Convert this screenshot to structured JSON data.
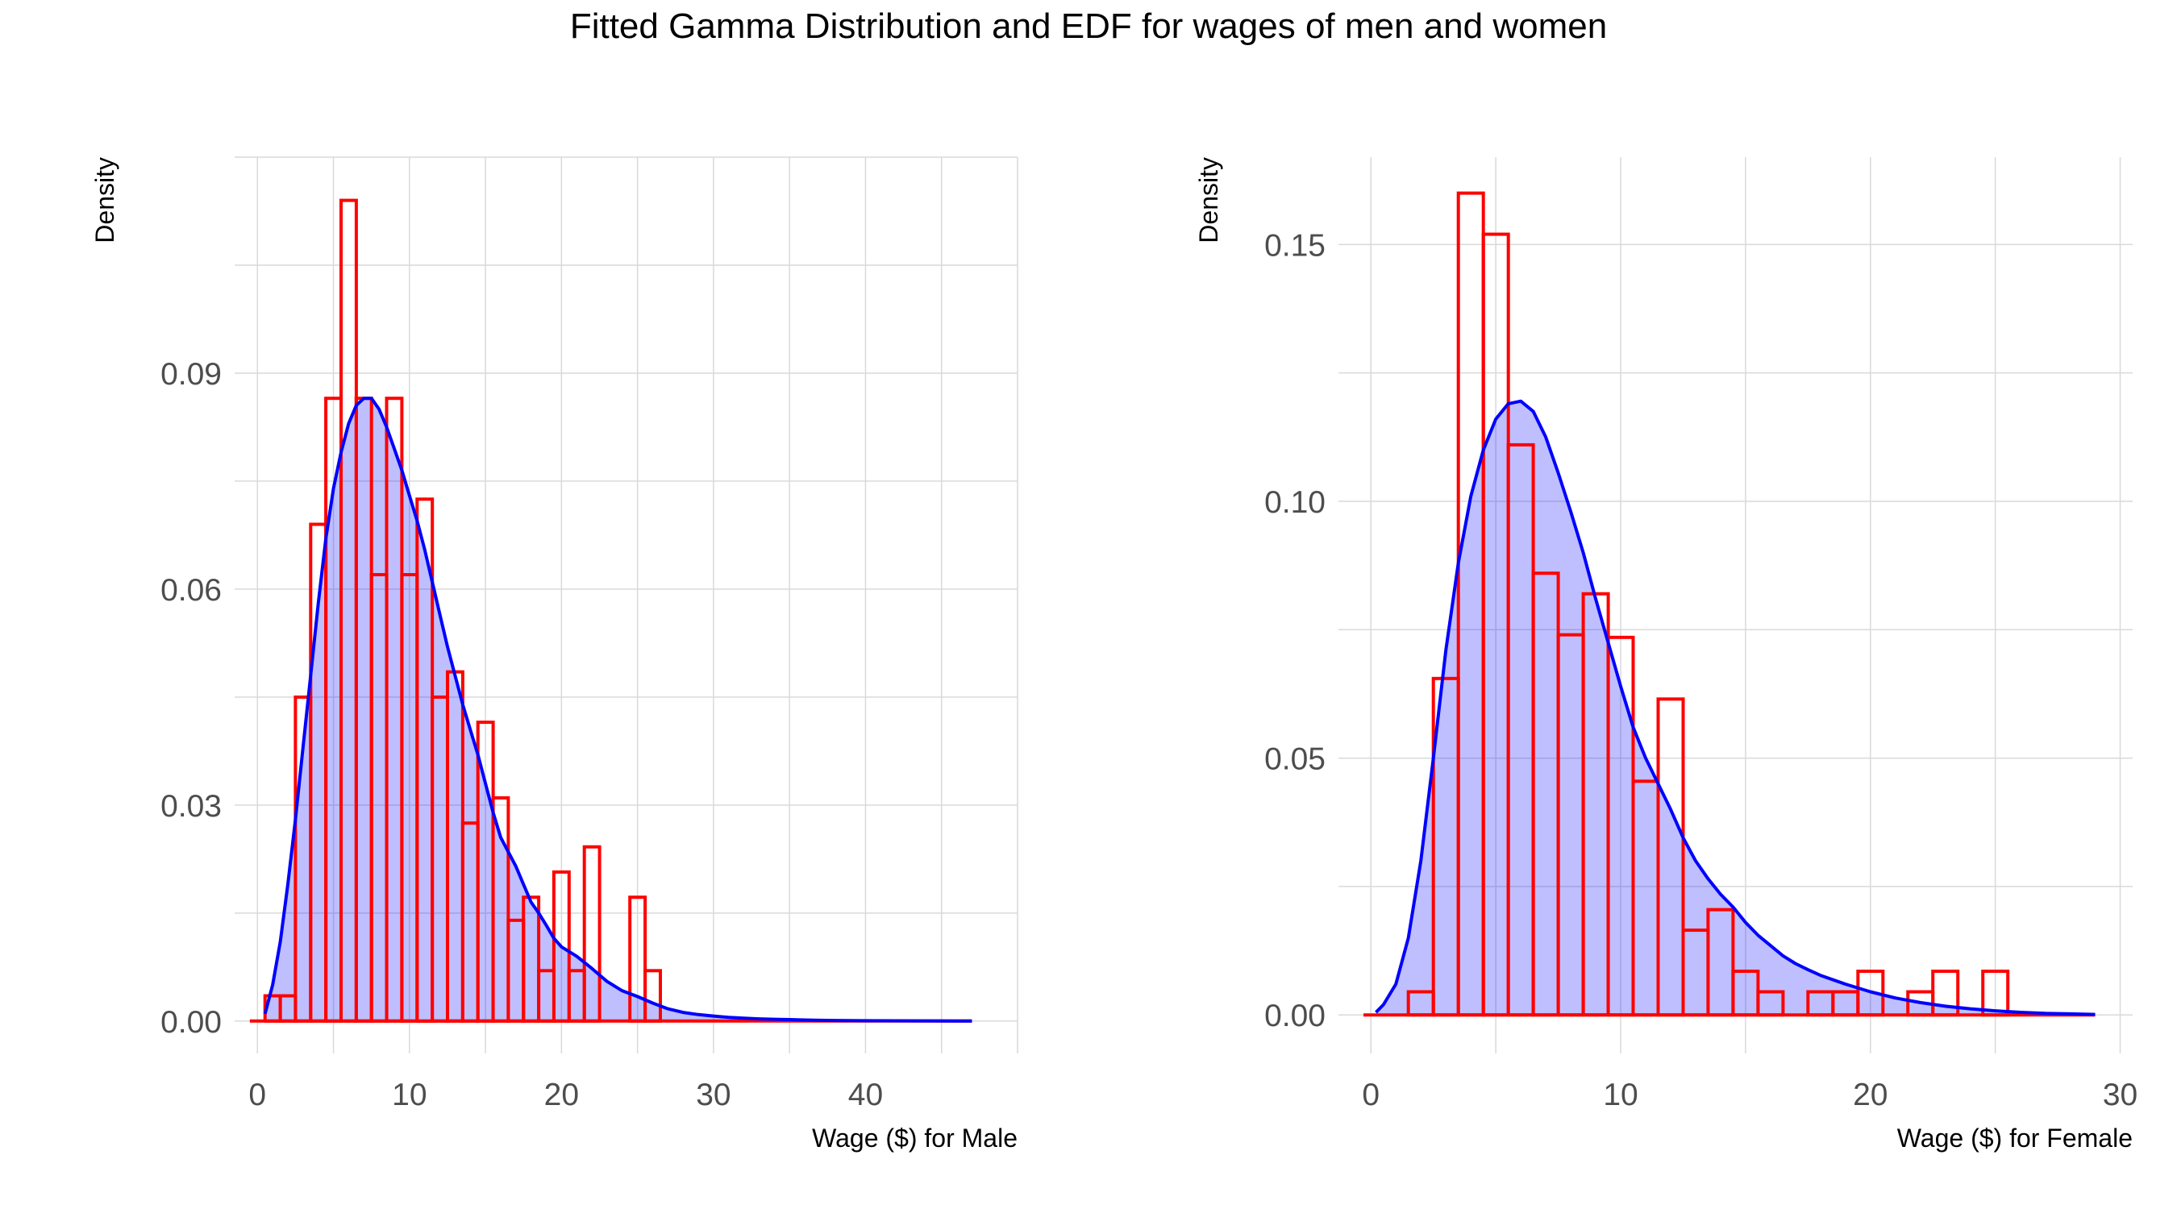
{
  "title": "Fitted Gamma Distribution and EDF for wages of men and women",
  "colors": {
    "histogram_outline": "#ff0000",
    "density_line": "#0000ff",
    "density_fill": "#0000ff",
    "overlap_outline": "#b0103a",
    "grid": "#d9d9d9",
    "tick_text": "#4d4d4d"
  },
  "chart_data": [
    {
      "type": "histogram+density",
      "xlabel": "Wage ($) for Male",
      "ylabel": "Density",
      "xlim": [
        -1.5,
        50
      ],
      "ylim": [
        -0.0045,
        0.12
      ],
      "x_ticks": [
        0,
        10,
        20,
        30,
        40
      ],
      "x_tick_labels": [
        "0",
        "10",
        "20",
        "30",
        "40"
      ],
      "y_ticks": [
        0,
        0.03,
        0.06,
        0.09
      ],
      "y_tick_labels": [
        "0.00",
        "0.03",
        "0.06",
        "0.09"
      ],
      "grid": true,
      "bin_width": 1,
      "bins": [
        {
          "x0": 0.5,
          "x1": 1.5,
          "density": 0.0035
        },
        {
          "x0": 1.5,
          "x1": 2.5,
          "density": 0.0035
        },
        {
          "x0": 2.5,
          "x1": 3.5,
          "density": 0.045
        },
        {
          "x0": 3.5,
          "x1": 4.5,
          "density": 0.069
        },
        {
          "x0": 4.5,
          "x1": 5.5,
          "density": 0.0865
        },
        {
          "x0": 5.5,
          "x1": 6.5,
          "density": 0.114
        },
        {
          "x0": 6.5,
          "x1": 7.5,
          "density": 0.0865
        },
        {
          "x0": 7.5,
          "x1": 8.5,
          "density": 0.062
        },
        {
          "x0": 8.5,
          "x1": 9.5,
          "density": 0.0865
        },
        {
          "x0": 9.5,
          "x1": 10.5,
          "density": 0.062
        },
        {
          "x0": 10.5,
          "x1": 11.5,
          "density": 0.0725
        },
        {
          "x0": 11.5,
          "x1": 12.5,
          "density": 0.045
        },
        {
          "x0": 12.5,
          "x1": 13.5,
          "density": 0.0485
        },
        {
          "x0": 13.5,
          "x1": 14.5,
          "density": 0.0275
        },
        {
          "x0": 14.5,
          "x1": 15.5,
          "density": 0.0415
        },
        {
          "x0": 15.5,
          "x1": 16.5,
          "density": 0.031
        },
        {
          "x0": 16.5,
          "x1": 17.5,
          "density": 0.014
        },
        {
          "x0": 17.5,
          "x1": 18.5,
          "density": 0.0172
        },
        {
          "x0": 18.5,
          "x1": 19.5,
          "density": 0.007
        },
        {
          "x0": 19.5,
          "x1": 20.5,
          "density": 0.0207
        },
        {
          "x0": 20.5,
          "x1": 21.5,
          "density": 0.007
        },
        {
          "x0": 21.5,
          "x1": 22.5,
          "density": 0.0242
        },
        {
          "x0": 24.5,
          "x1": 25.5,
          "density": 0.0172
        },
        {
          "x0": 25.5,
          "x1": 26.5,
          "density": 0.007
        }
      ],
      "density_curve": {
        "x": [
          0.5,
          1,
          1.5,
          2,
          2.5,
          3,
          3.5,
          4,
          4.5,
          5,
          5.5,
          6,
          6.5,
          7,
          7.5,
          8,
          8.5,
          9,
          9.5,
          10,
          10.5,
          11,
          11.5,
          12,
          12.5,
          13,
          13.5,
          14,
          14.5,
          15,
          15.5,
          16,
          16.5,
          17,
          17.5,
          18,
          18.5,
          19,
          19.5,
          20,
          21,
          22,
          23,
          24,
          25,
          26,
          27,
          28,
          29,
          30,
          31,
          32,
          33,
          34,
          35,
          36,
          37,
          38,
          40,
          42,
          44,
          46,
          47
        ],
        "y": [
          0.001,
          0.005,
          0.011,
          0.019,
          0.028,
          0.038,
          0.048,
          0.058,
          0.067,
          0.074,
          0.079,
          0.083,
          0.0855,
          0.0865,
          0.0865,
          0.085,
          0.0825,
          0.0795,
          0.0765,
          0.073,
          0.0695,
          0.0655,
          0.061,
          0.0565,
          0.052,
          0.048,
          0.044,
          0.0405,
          0.037,
          0.033,
          0.029,
          0.0255,
          0.0235,
          0.0215,
          0.019,
          0.0165,
          0.015,
          0.0133,
          0.0115,
          0.0103,
          0.009,
          0.0073,
          0.0055,
          0.0042,
          0.0034,
          0.0025,
          0.0017,
          0.0012,
          0.0009,
          0.0007,
          0.0005,
          0.0004,
          0.0003,
          0.00025,
          0.0002,
          0.00015,
          0.0001,
          8e-05,
          5e-05,
          3e-05,
          2e-05,
          1e-05,
          0
        ]
      }
    },
    {
      "type": "histogram+density",
      "xlabel": "Wage ($) for Female",
      "ylabel": "Density",
      "xlim": [
        -1.3,
        30.5
      ],
      "ylim": [
        -0.0075,
        0.167
      ],
      "x_ticks": [
        0,
        10,
        20,
        30
      ],
      "x_tick_labels": [
        "0",
        "10",
        "20",
        "30"
      ],
      "y_ticks": [
        0,
        0.05,
        0.1,
        0.15
      ],
      "y_tick_labels": [
        "0.00",
        "0.05",
        "0.10",
        "0.15"
      ],
      "grid": true,
      "bin_width": 1,
      "bins": [
        {
          "x0": 1.5,
          "x1": 2.5,
          "density": 0.0045
        },
        {
          "x0": 2.5,
          "x1": 3.5,
          "density": 0.0655
        },
        {
          "x0": 3.5,
          "x1": 4.5,
          "density": 0.16
        },
        {
          "x0": 4.5,
          "x1": 5.5,
          "density": 0.152
        },
        {
          "x0": 5.5,
          "x1": 6.5,
          "density": 0.111
        },
        {
          "x0": 6.5,
          "x1": 7.5,
          "density": 0.086
        },
        {
          "x0": 7.5,
          "x1": 8.5,
          "density": 0.074
        },
        {
          "x0": 8.5,
          "x1": 9.5,
          "density": 0.082
        },
        {
          "x0": 9.5,
          "x1": 10.5,
          "density": 0.0735
        },
        {
          "x0": 10.5,
          "x1": 11.5,
          "density": 0.0455
        },
        {
          "x0": 11.5,
          "x1": 12.5,
          "density": 0.0615
        },
        {
          "x0": 12.5,
          "x1": 13.5,
          "density": 0.0165
        },
        {
          "x0": 13.5,
          "x1": 14.5,
          "density": 0.0205
        },
        {
          "x0": 14.5,
          "x1": 15.5,
          "density": 0.0085
        },
        {
          "x0": 15.5,
          "x1": 16.5,
          "density": 0.0045
        },
        {
          "x0": 17.5,
          "x1": 18.5,
          "density": 0.0045
        },
        {
          "x0": 18.5,
          "x1": 19.5,
          "density": 0.0045
        },
        {
          "x0": 19.5,
          "x1": 20.5,
          "density": 0.0085
        },
        {
          "x0": 21.5,
          "x1": 22.5,
          "density": 0.0045
        },
        {
          "x0": 22.5,
          "x1": 23.5,
          "density": 0.0085
        },
        {
          "x0": 24.5,
          "x1": 25.5,
          "density": 0.0085
        }
      ],
      "density_curve": {
        "x": [
          0.2,
          0.5,
          1,
          1.5,
          2,
          2.5,
          3,
          3.5,
          4,
          4.5,
          5,
          5.5,
          6,
          6.5,
          7,
          7.5,
          8,
          8.5,
          9,
          9.5,
          10,
          10.5,
          11,
          11.5,
          12,
          12.5,
          13,
          13.5,
          14,
          14.5,
          15,
          15.5,
          16,
          16.5,
          17,
          17.5,
          18,
          19,
          20,
          21,
          22,
          23,
          24,
          25,
          26,
          27,
          28,
          29
        ],
        "y": [
          0.0005,
          0.002,
          0.006,
          0.015,
          0.03,
          0.05,
          0.071,
          0.088,
          0.101,
          0.11,
          0.116,
          0.119,
          0.1195,
          0.1175,
          0.1125,
          0.1055,
          0.098,
          0.09,
          0.081,
          0.0725,
          0.064,
          0.056,
          0.05,
          0.045,
          0.04,
          0.0345,
          0.03,
          0.0265,
          0.0235,
          0.021,
          0.018,
          0.0155,
          0.0135,
          0.0115,
          0.01,
          0.0088,
          0.0077,
          0.006,
          0.0045,
          0.0033,
          0.0024,
          0.0017,
          0.0012,
          0.0008,
          0.0005,
          0.0003,
          0.0002,
          0.0001
        ]
      }
    }
  ]
}
